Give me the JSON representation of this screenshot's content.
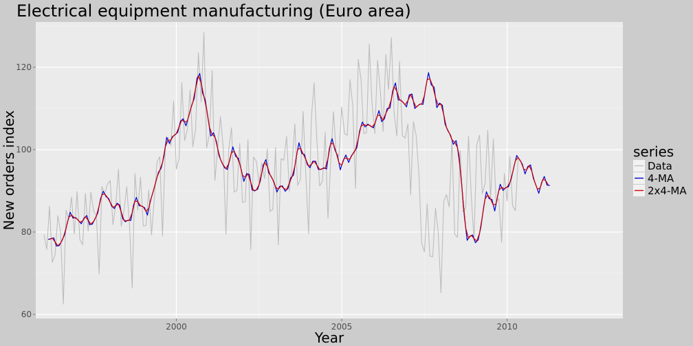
{
  "chart_data": {
    "type": "line",
    "title": "Electrical equipment manufacturing (Euro area)",
    "xlabel": "Year",
    "ylabel": "New orders index",
    "xlim": [
      1995.75,
      2013.5
    ],
    "ylim": [
      59,
      131
    ],
    "x_ticks": [
      2000,
      2005,
      2010
    ],
    "y_ticks": [
      60,
      80,
      100,
      120
    ],
    "grid": true,
    "legend": {
      "title": "series",
      "position": "right"
    },
    "colors": {
      "data": "#bdbdbd",
      "ma4": "#0000cc",
      "ma2x4": "#cc0000"
    },
    "series": [
      {
        "name": "Data",
        "start": 1996.0,
        "step": 0.08333333,
        "values": [
          79.4,
          75.8,
          86.3,
          72.6,
          74.5,
          84.0,
          80.0,
          62.5,
          85.3,
          83.0,
          88.5,
          79.5,
          89.8,
          78.1,
          76.9,
          89.4,
          80.2,
          89.7,
          85.1,
          83.9,
          69.8,
          91.1,
          89.3,
          91.6,
          92.5,
          81.8,
          86.5,
          95.2,
          81.4,
          85.1,
          91.0,
          82.0,
          66.4,
          94.2,
          85.3,
          93.3,
          81.5,
          81.6,
          90.2,
          79.3,
          88.0,
          97.0,
          98.3,
          79.1,
          100.6,
          103.0,
          101.0,
          111.8,
          95.3,
          97.8,
          116.3,
          102.2,
          104.9,
          114.5,
          100.7,
          105.0,
          123.5,
          111.6,
          128.4,
          100.4,
          103.7,
          119.2,
          92.5,
          100.3,
          108.0,
          100.7,
          79.5,
          100.0,
          105.3,
          89.7,
          90.1,
          101.5,
          87.2,
          87.4,
          102.4,
          75.7,
          98.2,
          97.2,
          92.0,
          96.8,
          93.0,
          100.2,
          85.0,
          85.5,
          100.5,
          76.9,
          97.8,
          97.4,
          103.2,
          89.9,
          96.4,
          106.2,
          91.3,
          92.8,
          109.3,
          93.7,
          79.6,
          107.7,
          116.2,
          102.1,
          91.2,
          92.3,
          104.2,
          83.4,
          97.1,
          109.2,
          99.3,
          98.4,
          110.3,
          103.9,
          103.5,
          117.0,
          110.6,
          90.6,
          121.9,
          117.1,
          103.9,
          104.1,
          125.6,
          111.3,
          103.9,
          121.7,
          114.3,
          104.4,
          123.1,
          114.6,
          127.2,
          109.1,
          103.3,
          121.4,
          103.4,
          102.8,
          106.2,
          89.0,
          106.8,
          103.5,
          94.2,
          77.3,
          75.2,
          86.8,
          74.2,
          74.0,
          85.8,
          80.0,
          65.3,
          87.4,
          89.1,
          86.1,
          102.6,
          79.5,
          78.7,
          99.8,
          84.9,
          85.9,
          103.2,
          88.7,
          78.0,
          101.3,
          103.5,
          89.3,
          91.7,
          104.7,
          88.0,
          102.6,
          87.3,
          88.1,
          77.5,
          94.2,
          87.6,
          98.3,
          86.4,
          85.2,
          97.7
        ]
      },
      {
        "name": "4-MA",
        "start": 1996.125,
        "step": 0.08333333,
        "values": [
          78.2,
          78.4,
          78.6,
          76.6,
          76.7,
          77.9,
          79.4,
          82.4,
          84.8,
          83.4,
          83.5,
          82.8,
          82.0,
          83.4,
          84.0,
          81.8,
          81.9,
          83.2,
          84.6,
          88.1,
          89.9,
          88.6,
          88.1,
          86.3,
          85.7,
          87.0,
          86.5,
          83.3,
          82.5,
          82.9,
          82.8,
          86.6,
          88.4,
          86.4,
          86.3,
          85.9,
          84.1,
          87.4,
          89.6,
          92.0,
          94.5,
          95.5,
          98.3,
          103.0,
          101.5,
          103.1,
          103.6,
          104.2,
          106.9,
          107.5,
          105.8,
          108.1,
          110.6,
          112.4,
          117.3,
          118.5,
          113.8,
          112.0,
          107.6,
          103.3,
          104.1,
          102.1,
          98.5,
          96.9,
          95.6,
          95.2,
          97.9,
          100.7,
          98.4,
          97.9,
          95.3,
          92.3,
          94.2,
          94.0,
          90.2,
          90.0,
          90.4,
          92.5,
          96.2,
          97.6,
          94.4,
          93.4,
          92.0,
          89.7,
          91.1,
          91.2,
          89.9,
          90.6,
          93.2,
          93.8,
          98.2,
          101.7,
          99.1,
          98.8,
          96.4,
          95.6,
          97.2,
          97.2,
          95.2,
          95.2,
          95.6,
          95.3,
          100.2,
          102.7,
          100.0,
          98.5,
          95.1,
          97.3,
          98.7,
          96.9,
          98.5,
          99.4,
          100.5,
          104.6,
          106.7,
          105.5,
          106.2,
          105.7,
          105.3,
          107.3,
          109.5,
          106.8,
          107.5,
          110.0,
          110.1,
          114.3,
          116.2,
          112.1,
          112.0,
          111.3,
          110.4,
          113.3,
          113.5,
          110.0,
          110.6,
          111.1,
          111.0,
          115.2,
          118.7,
          115.7,
          115.2,
          110.2,
          111.3,
          110.8,
          106.2,
          104.6,
          103.5,
          101.3,
          102.2,
          98.8,
          91.7,
          83.7,
          78.0,
          79.0,
          79.3,
          77.4,
          78.1,
          81.2,
          86.1,
          89.8,
          88.1,
          87.9,
          85.1,
          88.6,
          91.6,
          90.1,
          90.8,
          91.0,
          92.9,
          95.9,
          98.6,
          97.6,
          96.5,
          94.1,
          95.9,
          96.3,
          93.1,
          91.3,
          89.4,
          92.0,
          93.5,
          91.4,
          91.3
        ]
      },
      {
        "name": "2x4-MA",
        "start": 1996.166667,
        "step": 0.08333333,
        "values": [
          78.2,
          78.5,
          77.6,
          76.7,
          77.3,
          78.7,
          80.9,
          83.6,
          84.1,
          83.5,
          83.2,
          82.4,
          82.7,
          83.7,
          82.9,
          81.9,
          82.6,
          83.9,
          86.4,
          89.0,
          89.3,
          88.4,
          87.2,
          86.0,
          86.4,
          86.8,
          84.9,
          82.9,
          82.7,
          82.9,
          84.7,
          87.5,
          87.4,
          86.4,
          86.1,
          85.0,
          85.8,
          88.5,
          90.8,
          93.3,
          95.0,
          96.9,
          100.7,
          102.3,
          102.3,
          103.4,
          103.9,
          105.6,
          107.2,
          106.7,
          107.0,
          109.4,
          111.5,
          114.9,
          117.9,
          116.2,
          112.9,
          109.8,
          105.5,
          103.7,
          103.1,
          100.3,
          97.7,
          96.3,
          95.4,
          96.6,
          99.3,
          99.6,
          98.2,
          96.6,
          93.8,
          93.3,
          94.1,
          92.1,
          90.1,
          90.2,
          91.5,
          94.4,
          96.9,
          96.0,
          93.9,
          92.7,
          90.9,
          90.4,
          91.2,
          90.6,
          90.3,
          91.9,
          93.5,
          96.0,
          100.0,
          100.4,
          99.0,
          97.6,
          96.0,
          96.4,
          97.2,
          96.2,
          95.2,
          95.4,
          95.5,
          97.8,
          101.5,
          101.4,
          99.3,
          96.8,
          96.2,
          98.0,
          97.8,
          97.7,
          99.0,
          100.0,
          102.6,
          105.7,
          106.1,
          105.9,
          106.0,
          105.5,
          106.3,
          108.4,
          108.2,
          107.2,
          108.8,
          110.1,
          112.2,
          115.3,
          114.2,
          112.1,
          111.7,
          110.9,
          111.9,
          113.4,
          111.8,
          110.3,
          110.9,
          111.1,
          113.1,
          117.0,
          117.2,
          115.5,
          112.7,
          110.8,
          111.1,
          108.5,
          105.4,
          104.1,
          102.4,
          101.8,
          100.5,
          95.3,
          87.7,
          80.9,
          78.5,
          79.2,
          78.4,
          77.8,
          79.7,
          83.7,
          88.0,
          89.0,
          88.0,
          86.5,
          86.9,
          90.1,
          90.9,
          90.5,
          90.9,
          92.0,
          94.4,
          97.3,
          98.1,
          97.1,
          95.3,
          95.0,
          96.1,
          94.7,
          92.2,
          90.4,
          90.7,
          92.8,
          92.5,
          91.4
        ]
      }
    ]
  }
}
